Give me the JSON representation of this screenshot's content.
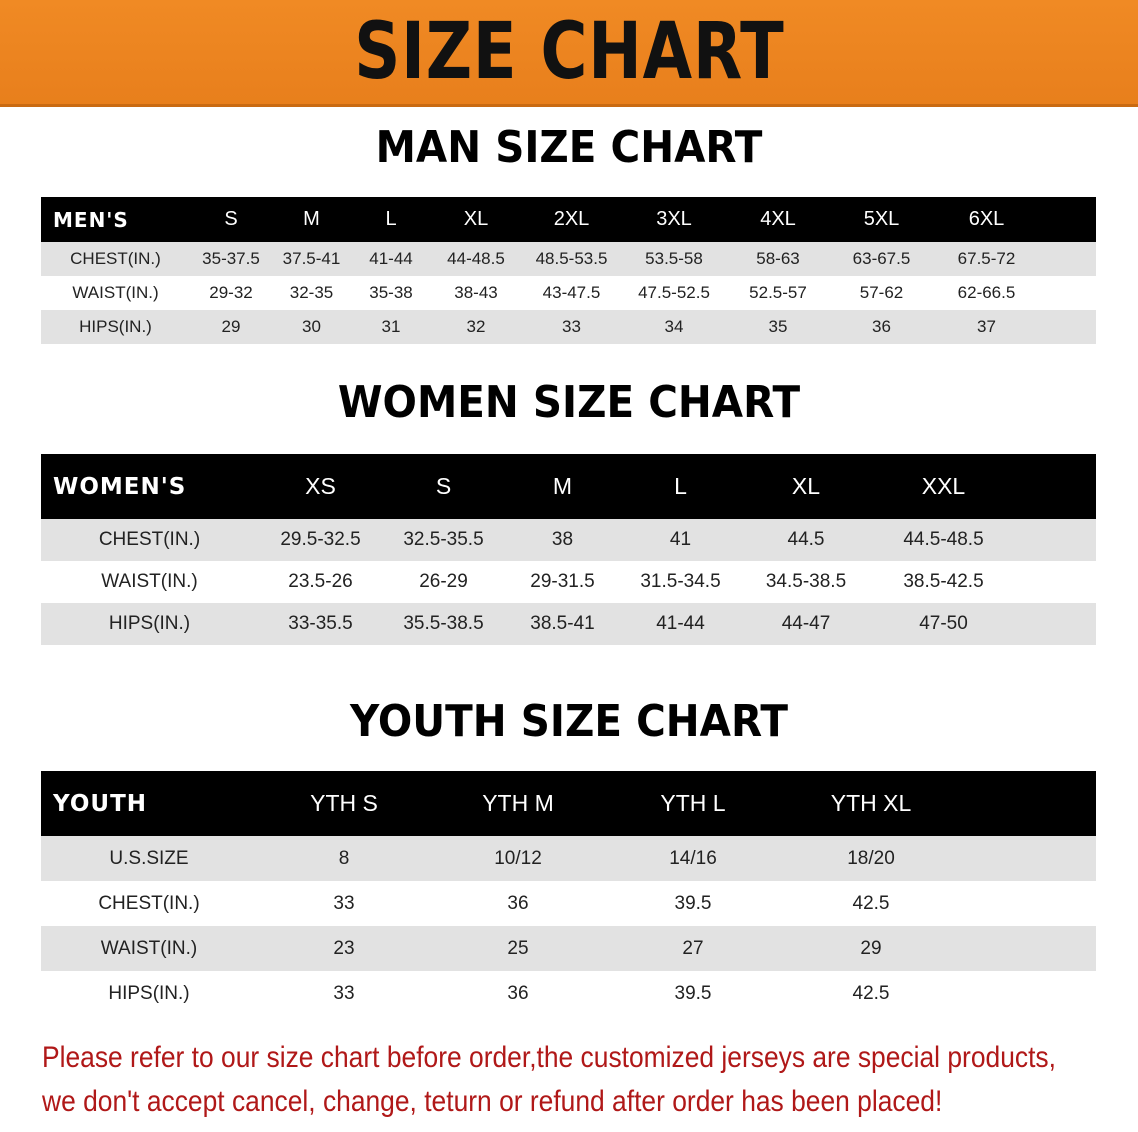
{
  "title": "SIZE CHART",
  "men": {
    "section_title": "MAN SIZE CHART",
    "headers": [
      "MEN'S",
      "S",
      "M",
      "L",
      "XL",
      "2XL",
      "3XL",
      "4XL",
      "5XL",
      "6XL"
    ],
    "rows": [
      [
        "CHEST(IN.)",
        "35-37.5",
        "37.5-41",
        "41-44",
        "44-48.5",
        "48.5-53.5",
        "53.5-58",
        "58-63",
        "63-67.5",
        "67.5-72"
      ],
      [
        "WAIST(IN.)",
        "29-32",
        "32-35",
        "35-38",
        "38-43",
        "43-47.5",
        "47.5-52.5",
        "52.5-57",
        "57-62",
        "62-66.5"
      ],
      [
        "HIPS(IN.)",
        "29",
        "30",
        "31",
        "32",
        "33",
        "34",
        "35",
        "36",
        "37"
      ]
    ]
  },
  "women": {
    "section_title": "WOMEN SIZE CHART",
    "headers": [
      "WOMEN'S",
      "XS",
      "S",
      "M",
      "L",
      "XL",
      "XXL"
    ],
    "rows": [
      [
        "CHEST(IN.)",
        "29.5-32.5",
        "32.5-35.5",
        "38",
        "41",
        "44.5",
        "44.5-48.5"
      ],
      [
        "WAIST(IN.)",
        "23.5-26",
        "26-29",
        "29-31.5",
        "31.5-34.5",
        "34.5-38.5",
        "38.5-42.5"
      ],
      [
        "HIPS(IN.)",
        "33-35.5",
        "35.5-38.5",
        "38.5-41",
        "41-44",
        "44-47",
        "47-50"
      ]
    ]
  },
  "youth": {
    "section_title": "YOUTH SIZE CHART",
    "headers": [
      "YOUTH",
      "YTH S",
      "YTH M",
      "YTH L",
      "YTH XL"
    ],
    "rows": [
      [
        "U.S.SIZE",
        "8",
        "10/12",
        "14/16",
        "18/20"
      ],
      [
        "CHEST(IN.)",
        "33",
        "36",
        "39.5",
        "42.5"
      ],
      [
        "WAIST(IN.)",
        "23",
        "25",
        "27",
        "29"
      ],
      [
        "HIPS(IN.)",
        "33",
        "36",
        "39.5",
        "42.5"
      ]
    ]
  },
  "note": {
    "line1": "Please refer to our size chart before order,the customized jerseys are special products,",
    "line2": "we don't accept cancel, change, teturn or refund after order has been placed!"
  },
  "colors": {
    "banner": "#ec8420",
    "header_row": "#000000",
    "stripe": "#e2e2e2",
    "note": "#b01818"
  }
}
